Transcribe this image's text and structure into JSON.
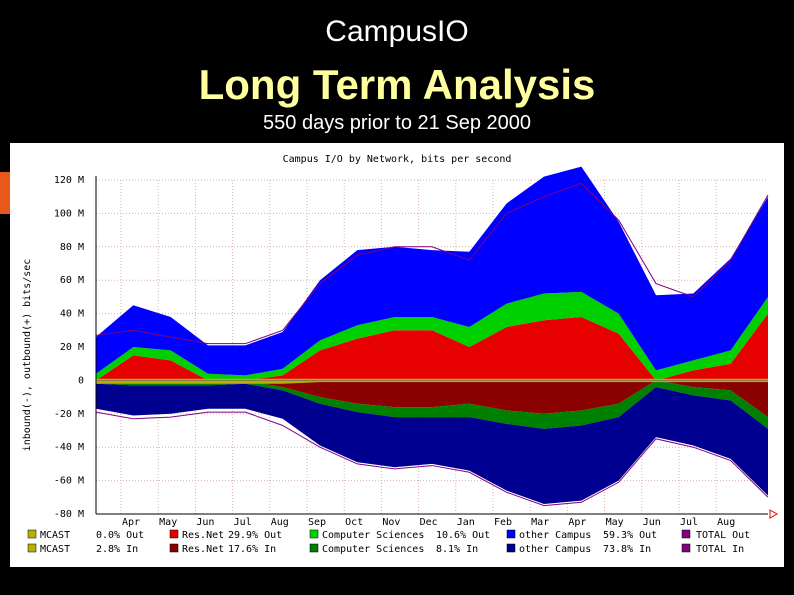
{
  "page": {
    "title_small": "CampusIO",
    "title_large": "Long Term Analysis",
    "subtitle": "550 days prior to 21 Sep 2000"
  },
  "colors": {
    "background": "#000000",
    "title_large": "#ffffa0",
    "accent_tab": "#e8581a",
    "mcast": "#b8b000",
    "resnet": "#e60000",
    "resnet_in": "#8b0000",
    "cs": "#00d000",
    "cs_in": "#008000",
    "other_out": "#0000ff",
    "other_in": "#000090",
    "total": "#800080"
  },
  "chart_data": {
    "type": "area",
    "title": "Campus I/O by Network, bits per second",
    "ylabel": "inbound(-), outbound(+) bits/sec",
    "ylim": [
      -80,
      120
    ],
    "y_ticks": [
      "120 M",
      "100 M",
      "80 M",
      "60 M",
      "40 M",
      "20 M",
      "0",
      "-20 M",
      "-40 M",
      "-60 M",
      "-80 M"
    ],
    "x_ticks": [
      "Apr",
      "May",
      "Jun",
      "Jul",
      "Aug",
      "Sep",
      "Oct",
      "Nov",
      "Dec",
      "Jan",
      "Feb",
      "Mar",
      "Apr",
      "May",
      "Jun",
      "Jul",
      "Aug"
    ],
    "grid": true,
    "x": [
      "Mar-99",
      "Apr-99",
      "May-99",
      "Jun-99",
      "Jul-99",
      "Aug-99",
      "Sep-99",
      "Oct-99",
      "Nov-99",
      "Dec-99",
      "Jan-00",
      "Feb-00",
      "Mar-00",
      "Apr-00",
      "May-00",
      "Jun-00",
      "Jul-00",
      "Aug-00",
      "Sep-00"
    ],
    "series": [
      {
        "name": "MCAST",
        "out": [
          1,
          1,
          1,
          1,
          1,
          1,
          1,
          1,
          1,
          1,
          1,
          1,
          1,
          1,
          1,
          1,
          1,
          1,
          1
        ],
        "in": [
          2,
          2,
          2,
          2,
          2,
          2,
          1,
          1,
          1,
          1,
          1,
          1,
          1,
          1,
          1,
          1,
          1,
          1,
          1
        ]
      },
      {
        "name": "Res.Net",
        "out": [
          0,
          15,
          12,
          0,
          0,
          3,
          18,
          25,
          30,
          30,
          20,
          32,
          36,
          38,
          28,
          0,
          6,
          10,
          40
        ],
        "in": [
          0,
          0,
          0,
          0,
          0,
          4,
          10,
          14,
          16,
          16,
          14,
          18,
          20,
          18,
          14,
          0,
          4,
          6,
          22
        ]
      },
      {
        "name": "Computer Sciences",
        "out": [
          4,
          5,
          6,
          4,
          3,
          4,
          6,
          8,
          8,
          8,
          12,
          14,
          16,
          15,
          12,
          6,
          6,
          8,
          10
        ],
        "in": [
          2,
          3,
          3,
          3,
          2,
          2,
          4,
          5,
          6,
          6,
          8,
          8,
          9,
          9,
          8,
          4,
          5,
          6,
          7
        ]
      },
      {
        "name": "other Campus",
        "out": [
          22,
          25,
          20,
          17,
          18,
          22,
          36,
          45,
          42,
          40,
          45,
          60,
          70,
          75,
          55,
          45,
          40,
          55,
          60
        ],
        "in": [
          15,
          18,
          17,
          14,
          15,
          17,
          25,
          30,
          30,
          28,
          32,
          40,
          45,
          45,
          38,
          30,
          30,
          35,
          40
        ]
      },
      {
        "name": "TOTAL",
        "out": [
          27,
          30,
          26,
          22,
          22,
          30,
          58,
          75,
          80,
          80,
          72,
          100,
          110,
          118,
          96,
          58,
          50,
          72,
          111
        ],
        "in": [
          19,
          23,
          22,
          19,
          19,
          27,
          40,
          50,
          53,
          51,
          55,
          67,
          75,
          73,
          61,
          35,
          40,
          48,
          70
        ]
      }
    ],
    "legend": {
      "placement": "bottom",
      "rows": [
        [
          {
            "label": "MCAST",
            "pct": "0.0% Out"
          },
          {
            "label": "Res.Net",
            "pct": "29.9% Out"
          },
          {
            "label": "Computer Sciences",
            "pct": "10.6% Out"
          },
          {
            "label": "other Campus",
            "pct": "59.3% Out"
          },
          {
            "label": "TOTAL",
            "pct": "TOTAL Out"
          }
        ],
        [
          {
            "label": "MCAST",
            "pct": "2.8% In"
          },
          {
            "label": "Res.Net",
            "pct": "17.6% In"
          },
          {
            "label": "Computer Sciences",
            "pct": "8.1% In"
          },
          {
            "label": "other Campus",
            "pct": "73.8% In"
          },
          {
            "label": "TOTAL",
            "pct": "TOTAL In"
          }
        ]
      ]
    }
  }
}
